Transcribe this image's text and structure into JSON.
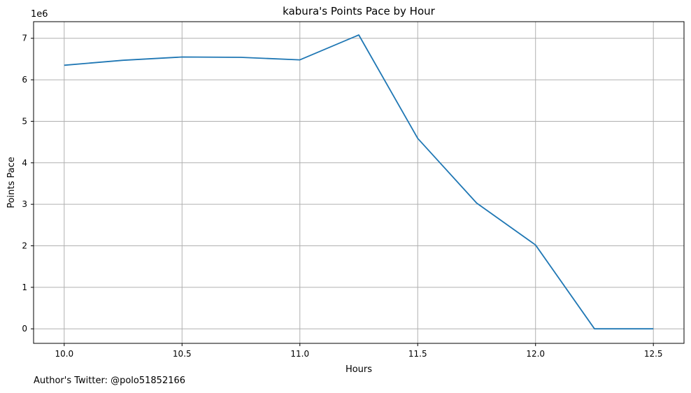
{
  "chart_data": {
    "type": "line",
    "title": "kabura's Points Pace by Hour",
    "xlabel": "Hours",
    "ylabel": "Points Pace",
    "y_offset_label": "1e6",
    "xlim": [
      9.87,
      12.63
    ],
    "ylim": [
      -350000,
      7400000
    ],
    "x_ticks": [
      10.0,
      10.5,
      11.0,
      11.5,
      12.0,
      12.5
    ],
    "x_tick_labels": [
      "10.0",
      "10.5",
      "11.0",
      "11.5",
      "12.0",
      "12.5"
    ],
    "y_ticks": [
      0,
      1000000,
      2000000,
      3000000,
      4000000,
      5000000,
      6000000,
      7000000
    ],
    "y_tick_labels": [
      "0",
      "1",
      "2",
      "3",
      "4",
      "5",
      "6",
      "7"
    ],
    "grid": true,
    "series": [
      {
        "color": "#1f77b4",
        "x": [
          10.0,
          10.25,
          10.5,
          10.75,
          11.0,
          11.25,
          11.5,
          11.75,
          12.0,
          12.25,
          12.5
        ],
        "y": [
          6350000,
          6470000,
          6550000,
          6540000,
          6480000,
          7080000,
          4590000,
          3030000,
          2020000,
          0,
          0
        ]
      }
    ]
  },
  "footer": {
    "text": "Author's Twitter: @polo51852166"
  }
}
